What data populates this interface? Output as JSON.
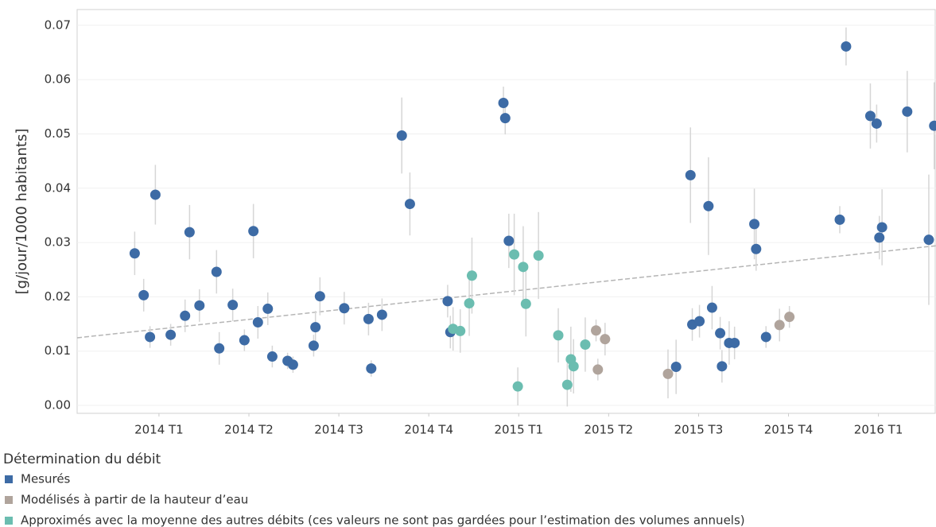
{
  "chart_data": {
    "type": "scatter",
    "ylabel": "[g/jour/1000 habitants]",
    "legend_title": "Détermination du débit",
    "xlim": [
      -0.91,
      8.64
    ],
    "ylim": [
      -0.00146,
      0.0729
    ],
    "xticks": [
      {
        "value": 0,
        "label": "2014 T1"
      },
      {
        "value": 1,
        "label": "2014 T2"
      },
      {
        "value": 2,
        "label": "2014 T3"
      },
      {
        "value": 3,
        "label": "2014 T4"
      },
      {
        "value": 4,
        "label": "2015 T1"
      },
      {
        "value": 5,
        "label": "2015 T2"
      },
      {
        "value": 6,
        "label": "2015 T3"
      },
      {
        "value": 7,
        "label": "2015 T4"
      },
      {
        "value": 8,
        "label": "2016 T1"
      }
    ],
    "yticks": [
      {
        "value": 0,
        "label": "0.00"
      },
      0.01,
      0.02,
      0.03,
      0.04,
      0.05,
      0.06,
      0.07
    ],
    "grid": true,
    "trend_line": {
      "color": "#b5b5b5",
      "x": [
        -0.91,
        8.64
      ],
      "values": [
        0.01245,
        0.0294
      ]
    },
    "series": [
      {
        "name": "Mesurés",
        "color": "#3d6ba5",
        "x": [
          -0.27,
          -0.17,
          -0.1,
          -0.04,
          0.13,
          0.29,
          0.34,
          0.45,
          0.64,
          0.67,
          0.82,
          0.95,
          1.05,
          1.1,
          1.21,
          1.26,
          1.43,
          1.49,
          1.72,
          1.74,
          1.79,
          2.06,
          2.33,
          2.36,
          2.48,
          2.7,
          2.79,
          3.21,
          3.24,
          3.83,
          3.85,
          3.89,
          5.75,
          5.91,
          5.93,
          6.01,
          6.11,
          6.15,
          6.24,
          6.26,
          6.34,
          6.4,
          6.62,
          6.64,
          6.75,
          7.57,
          7.64,
          7.91,
          7.98,
          8.01,
          8.04,
          8.32,
          8.56,
          8.62
        ],
        "values": [
          0.028,
          0.0203,
          0.0126,
          0.0388,
          0.013,
          0.0165,
          0.0319,
          0.0184,
          0.0246,
          0.0105,
          0.0185,
          0.012,
          0.0321,
          0.0153,
          0.0178,
          0.009,
          0.0082,
          0.0075,
          0.011,
          0.0144,
          0.0201,
          0.0179,
          0.0159,
          0.0068,
          0.0167,
          0.0497,
          0.0371,
          0.0192,
          0.0135,
          0.0557,
          0.0529,
          0.0303,
          0.0071,
          0.0424,
          0.0149,
          0.0155,
          0.0367,
          0.018,
          0.0133,
          0.0072,
          0.0115,
          0.0115,
          0.0334,
          0.0288,
          0.0126,
          0.0342,
          0.0661,
          0.0533,
          0.0519,
          0.0309,
          0.0328,
          0.0541,
          0.0305,
          0.0515
        ],
        "errors": [
          0.004,
          0.003,
          0.002,
          0.0055,
          0.002,
          0.003,
          0.005,
          0.003,
          0.004,
          0.003,
          0.003,
          0.002,
          0.005,
          0.003,
          0.003,
          0.002,
          0.0015,
          0.0015,
          0.002,
          0.003,
          0.0035,
          0.003,
          0.003,
          0.0015,
          0.003,
          0.007,
          0.0058,
          0.003,
          0.003,
          0.003,
          0.003,
          0.005,
          0.005,
          0.0088,
          0.003,
          0.003,
          0.009,
          0.004,
          0.003,
          0.003,
          0.004,
          0.003,
          0.0065,
          0.004,
          0.002,
          0.0025,
          0.0035,
          0.006,
          0.0035,
          0.004,
          0.007,
          0.0075,
          0.012,
          0.008
        ]
      },
      {
        "name": "Modélisés à partir de la hauteur d’eau",
        "color": "#b0a49c",
        "x": [
          4.86,
          4.88,
          4.96,
          5.66,
          6.9,
          7.01
        ],
        "values": [
          0.0138,
          0.0066,
          0.0122,
          0.0058,
          0.0148,
          0.0163
        ],
        "errors": [
          0.002,
          0.002,
          0.003,
          0.0045,
          0.003,
          0.002
        ]
      },
      {
        "name": "Approximés avec la moyenne des autres débits (ces valeurs ne sont pas gardées pour l’estimation des volumes annuels)",
        "color": "#6bbdb0",
        "x": [
          3.27,
          3.35,
          3.45,
          3.48,
          3.95,
          3.99,
          4.05,
          4.08,
          4.22,
          4.44,
          4.54,
          4.58,
          4.61,
          4.74
        ],
        "values": [
          0.0141,
          0.0137,
          0.0188,
          0.0239,
          0.0278,
          0.0035,
          0.0255,
          0.0187,
          0.0276,
          0.0129,
          0.0038,
          0.0085,
          0.0072,
          0.0112
        ],
        "errors": [
          0.004,
          0.004,
          0.006,
          0.007,
          0.0075,
          0.0035,
          0.0075,
          0.006,
          0.008,
          0.005,
          0.004,
          0.006,
          0.005,
          0.005
        ]
      }
    ]
  }
}
